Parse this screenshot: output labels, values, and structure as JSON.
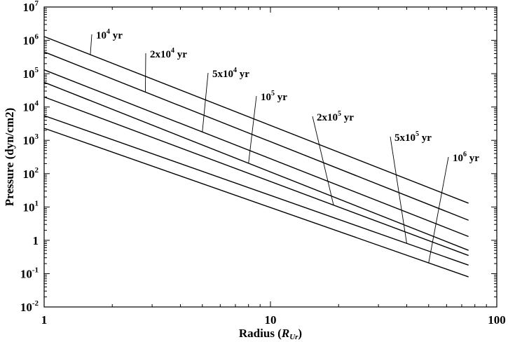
{
  "chart_data": {
    "type": "line",
    "title": "",
    "xlabel": "Radius (R_Ur)",
    "xlabel_parts": {
      "prefix": "Radius (",
      "symbol": "R",
      "subscript": "Ur",
      "suffix": ")"
    },
    "ylabel": "Pressure (dyn/cm2)",
    "xscale": "log",
    "yscale": "log",
    "xlim": [
      1,
      100
    ],
    "ylim": [
      0.01,
      10000000
    ],
    "grid": false,
    "legend": "none (curves labeled directly)",
    "x_ticks": [
      {
        "value": 1,
        "label": "1"
      },
      {
        "value": 10,
        "label": "10"
      },
      {
        "value": 100,
        "label": "100"
      }
    ],
    "y_ticks": [
      {
        "value": 0.01,
        "base": "10",
        "exp": "-2"
      },
      {
        "value": 0.1,
        "base": "10",
        "exp": "-1"
      },
      {
        "value": 1,
        "base": "1",
        "exp": ""
      },
      {
        "value": 10,
        "base": "10",
        "exp": "1"
      },
      {
        "value": 100,
        "base": "10",
        "exp": "2"
      },
      {
        "value": 1000,
        "base": "10",
        "exp": "3"
      },
      {
        "value": 10000,
        "base": "10",
        "exp": "4"
      },
      {
        "value": 100000,
        "base": "10",
        "exp": "5"
      },
      {
        "value": 1000000,
        "base": "10",
        "exp": "6"
      },
      {
        "value": 10000000,
        "base": "10",
        "exp": "7"
      }
    ],
    "series": [
      {
        "name": "10^4 yr",
        "label_base": "10",
        "label_exp": "4",
        "label_unit": " yr",
        "x": [
          1,
          75
        ],
        "y": [
          1300000,
          13
        ],
        "leader_at_x": 1.6
      },
      {
        "name": "2x10^4 yr",
        "label_base": "2x10",
        "label_exp": "4",
        "label_unit": " yr",
        "x": [
          1,
          75
        ],
        "y": [
          450000,
          4
        ],
        "leader_at_x": 2.8
      },
      {
        "name": "5x10^4 yr",
        "label_base": "5x10",
        "label_exp": "4",
        "label_unit": " yr",
        "x": [
          1,
          75
        ],
        "y": [
          130000,
          1.3
        ],
        "leader_at_x": 5
      },
      {
        "name": "10^5 yr",
        "label_base": "10",
        "label_exp": "5",
        "label_unit": " yr",
        "x": [
          1,
          75
        ],
        "y": [
          55000,
          0.5
        ],
        "leader_at_x": 8
      },
      {
        "name": "2x10^5 yr",
        "label_base": "2x10",
        "label_exp": "5",
        "label_unit": " yr",
        "x": [
          1,
          75
        ],
        "y": [
          20000,
          0.35
        ],
        "leader_at_x": 19
      },
      {
        "name": "5x10^5 yr",
        "label_base": "5x10",
        "label_exp": "5",
        "label_unit": " yr",
        "x": [
          1,
          75
        ],
        "y": [
          5500,
          0.18
        ],
        "leader_at_x": 40
      },
      {
        "name": "10^6 yr",
        "label_base": "10",
        "label_exp": "6",
        "label_unit": " yr",
        "x": [
          1,
          75
        ],
        "y": [
          2300,
          0.08
        ],
        "leader_at_x": 50
      }
    ]
  }
}
